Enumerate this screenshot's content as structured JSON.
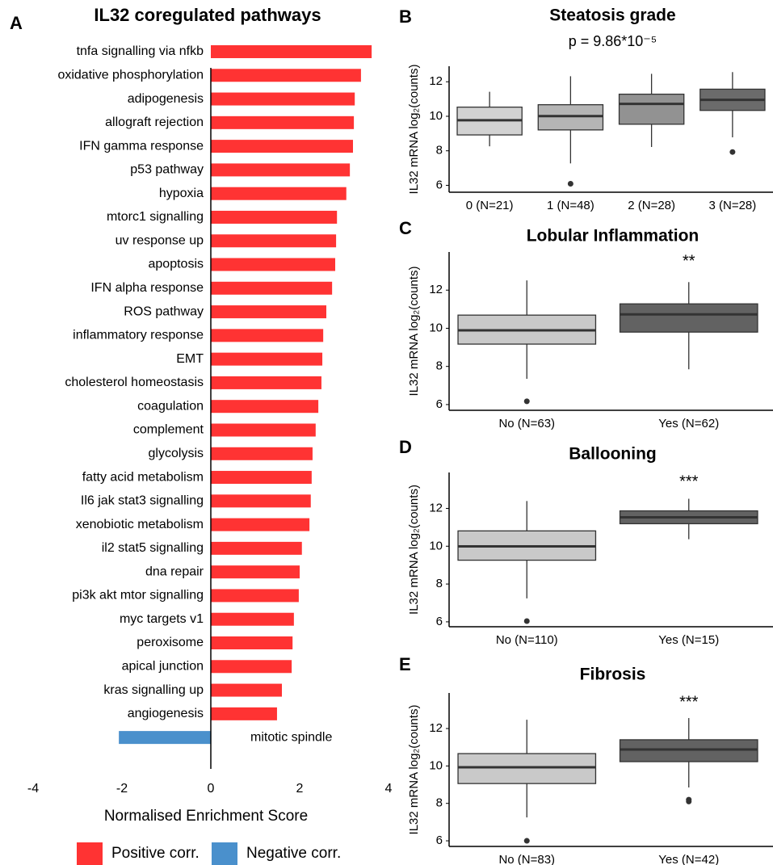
{
  "chart_data": [
    {
      "type": "hbar",
      "panel": "A",
      "title": "IL32 coregulated pathways",
      "xlabel": "Normalised Enrichment Score",
      "categories": [
        "tnfa signalling via nfkb",
        "oxidative phosphorylation",
        "adipogenesis",
        "allograft rejection",
        "IFN gamma response",
        "p53 pathway",
        "hypoxia",
        "mtorc1 signalling",
        "uv response up",
        "apoptosis",
        "IFN alpha response",
        "ROS pathway",
        "inflammatory response",
        "EMT",
        "cholesterol homeostasis",
        "coagulation",
        "complement",
        "glycolysis",
        "fatty acid metabolism",
        "Il6 jak stat3 signalling",
        "xenobiotic metabolism",
        "il2 stat5 signalling",
        "dna repair",
        "pi3k akt mtor signalling",
        "myc targets v1",
        "peroxisome",
        "apical junction",
        "kras signalling up",
        "angiogenesis",
        "mitotic spindle"
      ],
      "values": [
        3.62,
        3.38,
        3.24,
        3.22,
        3.2,
        3.13,
        3.05,
        2.84,
        2.82,
        2.8,
        2.73,
        2.6,
        2.53,
        2.51,
        2.49,
        2.42,
        2.36,
        2.29,
        2.27,
        2.25,
        2.22,
        2.05,
        2.0,
        1.98,
        1.87,
        1.84,
        1.82,
        1.6,
        1.49,
        -2.07
      ],
      "legend": [
        {
          "name": "Positive corr.",
          "color": "#ff3333"
        },
        {
          "name": "Negative corr.",
          "color": "#4a90cc"
        }
      ],
      "xlim": [
        -4,
        4
      ],
      "xticks": [
        -4,
        -2,
        0,
        2,
        4
      ]
    },
    {
      "type": "box",
      "panel": "B",
      "title": "Steatosis grade",
      "subtitle": "p = 9.86*10⁻⁵",
      "ylabel": "IL32 mRNA log₂(counts)",
      "categories": [
        "0 (N=21)",
        "1 (N=48)",
        "2 (N=28)",
        "3 (N=28)"
      ],
      "colors": [
        "#d2d2d2",
        "#b5b5b5",
        "#929292",
        "#6b6b6b"
      ],
      "boxes": [
        {
          "low": 8.26,
          "q1": 8.92,
          "median": 9.77,
          "q3": 10.53,
          "high": 11.42,
          "outliers": []
        },
        {
          "low": 7.27,
          "q1": 9.21,
          "median": 10.01,
          "q3": 10.67,
          "high": 12.32,
          "outliers": [
            6.09
          ]
        },
        {
          "low": 8.22,
          "q1": 9.54,
          "median": 10.72,
          "q3": 11.28,
          "high": 12.46,
          "outliers": []
        },
        {
          "low": 8.78,
          "q1": 10.34,
          "median": 10.95,
          "q3": 11.57,
          "high": 12.56,
          "outliers": [
            7.93
          ]
        }
      ],
      "ylim": [
        5.6,
        12.9
      ],
      "yticks": [
        6,
        8,
        10,
        12
      ]
    },
    {
      "type": "box",
      "panel": "C",
      "title": "Lobular Inflammation",
      "annotation": "**",
      "ylabel": "IL32 mRNA log₂(counts)",
      "categories": [
        "No (N=63)",
        "Yes (N=62)"
      ],
      "colors": [
        "#c9c9c9",
        "#626262"
      ],
      "boxes": [
        {
          "low": 7.35,
          "q1": 9.17,
          "median": 9.89,
          "q3": 10.69,
          "high": 12.51,
          "outliers": [
            6.17
          ]
        },
        {
          "low": 7.85,
          "q1": 9.8,
          "median": 10.73,
          "q3": 11.28,
          "high": 12.42,
          "outliers": []
        }
      ],
      "ylim": [
        5.7,
        14
      ],
      "yticks": [
        6,
        8,
        10,
        12
      ]
    },
    {
      "type": "box",
      "panel": "D",
      "title": "Ballooning",
      "annotation": "***",
      "ylabel": "IL32 mRNA log₂(counts)",
      "categories": [
        "No (N=110)",
        "Yes (N=15)"
      ],
      "colors": [
        "#c9c9c9",
        "#626262"
      ],
      "boxes": [
        {
          "low": 7.24,
          "q1": 9.26,
          "median": 9.99,
          "q3": 10.81,
          "high": 12.39,
          "outliers": [
            6.04
          ]
        },
        {
          "low": 10.37,
          "q1": 11.19,
          "median": 11.53,
          "q3": 11.87,
          "high": 12.51,
          "outliers": []
        }
      ],
      "ylim": [
        5.74,
        13.9
      ],
      "yticks": [
        6,
        8,
        10,
        12
      ]
    },
    {
      "type": "box",
      "panel": "E",
      "title": "Fibrosis",
      "annotation": "***",
      "ylabel": "IL32 mRNA log₂(counts)",
      "categories": [
        "No (N=83)",
        "Yes (N=42)"
      ],
      "colors": [
        "#c9c9c9",
        "#626262"
      ],
      "boxes": [
        {
          "low": 7.25,
          "q1": 9.06,
          "median": 9.93,
          "q3": 10.66,
          "high": 12.47,
          "outliers": [
            6.0
          ]
        },
        {
          "low": 8.85,
          "q1": 10.23,
          "median": 10.88,
          "q3": 11.4,
          "high": 12.56,
          "outliers": [
            8.2,
            8.1
          ]
        }
      ],
      "ylim": [
        5.7,
        13.9
      ],
      "yticks": [
        6,
        8,
        10,
        12
      ]
    }
  ]
}
